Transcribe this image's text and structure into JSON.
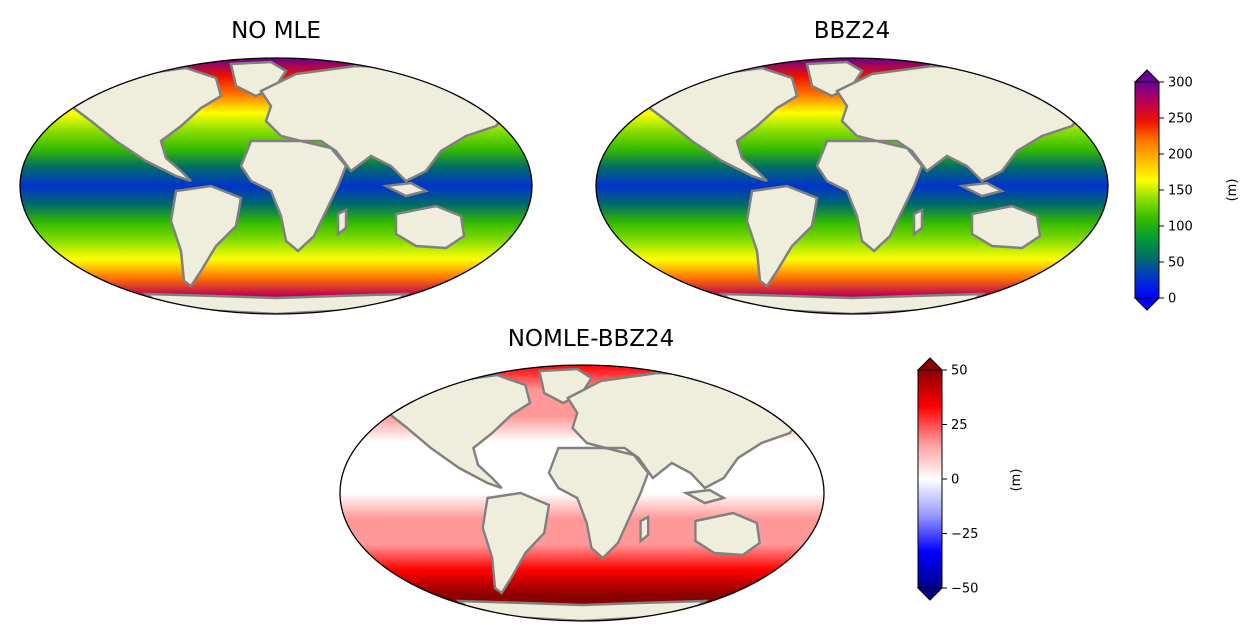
{
  "panels": {
    "nomle": {
      "title": "NO MLE"
    },
    "bbz24": {
      "title": "BBZ24"
    },
    "diff": {
      "title": "NOMLE-BBZ24"
    }
  },
  "colorbars": {
    "mld": {
      "unit": "(m)",
      "ticks": [
        "0",
        "50",
        "100",
        "150",
        "200",
        "250",
        "300"
      ],
      "range": [
        0,
        300
      ],
      "extend": "both",
      "colors": [
        "#0000ff",
        "#0033cc",
        "#006a6a",
        "#009a3a",
        "#33bb00",
        "#88dd00",
        "#ffff00",
        "#ffbb00",
        "#ff7700",
        "#ee1100",
        "#bb0055",
        "#6a0095"
      ]
    },
    "diff": {
      "unit": "(m)",
      "ticks": [
        "−50",
        "−25",
        "0",
        "25",
        "50"
      ],
      "range": [
        -50,
        50
      ],
      "extend": "both",
      "colors": [
        "#00008b",
        "#0000ff",
        "#9999ff",
        "#ffffff",
        "#ff9999",
        "#ff0000",
        "#8b0000"
      ]
    }
  },
  "colors": {
    "land": "#efeedc",
    "coastline": "#808080"
  }
}
